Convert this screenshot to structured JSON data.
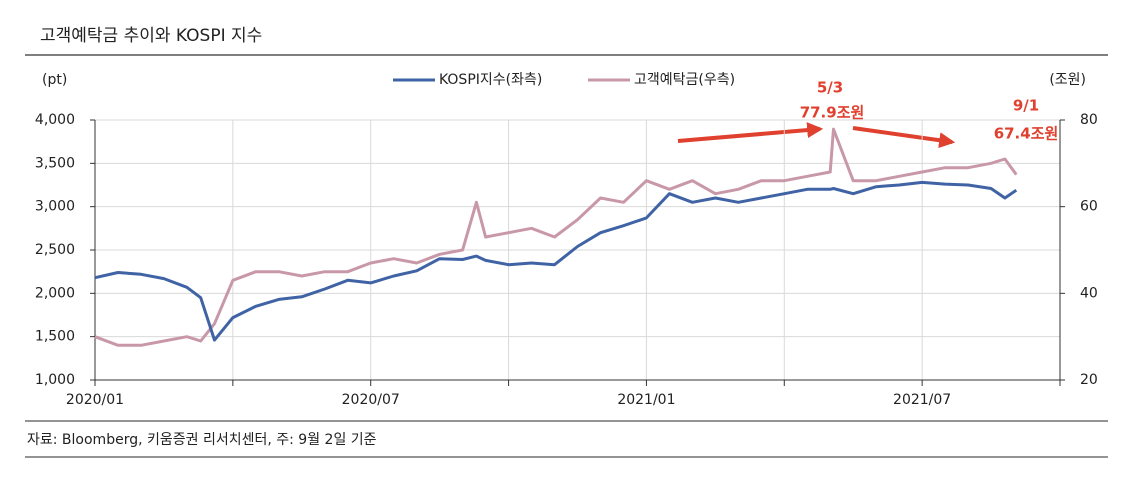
{
  "chart_data": {
    "type": "line",
    "title": "고객예탁금 추이와 KOSPI 지수",
    "y_unit": "(pt)",
    "y2_unit": "(조원)",
    "source": "자료: Bloomberg, 키움증권 리서치센터, 주: 9월 2일 기준",
    "x": [
      0,
      0.5,
      1,
      1.5,
      2,
      2.3,
      2.6,
      3,
      3.5,
      4,
      4.5,
      5,
      5.5,
      6,
      6.5,
      7,
      7.5,
      8,
      8.3,
      8.5,
      9,
      9.5,
      10,
      10.5,
      11,
      11.5,
      12,
      12.5,
      13,
      13.5,
      14,
      14.5,
      15,
      15.5,
      16,
      16.07,
      16.5,
      17,
      17.5,
      18,
      18.5,
      19,
      19.5,
      19.8,
      20.05
    ],
    "xlim": [
      0,
      21
    ],
    "xticks": [
      {
        "value": 0,
        "label": "2020/01"
      },
      {
        "value": 6,
        "label": "2020/07"
      },
      {
        "value": 12,
        "label": "2021/01"
      },
      {
        "value": 18,
        "label": "2021/07"
      }
    ],
    "xminorticks": [
      3,
      9,
      15,
      21
    ],
    "ylim": [
      1000,
      4000
    ],
    "yticks": [
      {
        "value": 1000,
        "label": "1,000"
      },
      {
        "value": 1500,
        "label": "1,500"
      },
      {
        "value": 2000,
        "label": "2,000"
      },
      {
        "value": 2500,
        "label": "2,500"
      },
      {
        "value": 3000,
        "label": "3,000"
      },
      {
        "value": 3500,
        "label": "3,500"
      },
      {
        "value": 4000,
        "label": "4,000"
      }
    ],
    "y2lim": [
      20,
      80
    ],
    "y2ticks": [
      20,
      40,
      60,
      80
    ],
    "grid": true,
    "series": [
      {
        "name": "KOSPI지수(좌측)",
        "color": "#3f63a4",
        "values": [
          2180,
          2240,
          2220,
          2170,
          2070,
          1950,
          1460,
          1720,
          1850,
          1930,
          1960,
          2050,
          2150,
          2120,
          2200,
          2260,
          2400,
          2390,
          2430,
          2380,
          2330,
          2350,
          2330,
          2540,
          2700,
          2780,
          2870,
          3150,
          3050,
          3100,
          3050,
          3100,
          3150,
          3200,
          3200,
          3210,
          3150,
          3230,
          3250,
          3280,
          3260,
          3250,
          3210,
          3100,
          3190
        ]
      },
      {
        "name": "고객예탁금(우측)",
        "color": "#c898a8",
        "axis": "y2",
        "values": [
          30,
          28,
          28,
          29,
          30,
          29,
          33,
          43,
          45,
          45,
          44,
          45,
          45,
          47,
          48,
          47,
          49,
          50,
          61,
          53,
          54,
          55,
          53,
          57,
          62,
          61,
          66,
          64,
          66,
          63,
          64,
          66,
          66,
          67,
          68,
          77.9,
          66,
          66,
          67,
          68,
          69,
          69,
          70,
          71,
          67.4
        ]
      }
    ],
    "annotations": [
      {
        "date": "5/3",
        "value_label": "77.9조원"
      },
      {
        "date": "9/1",
        "value_label": "67.4조원"
      }
    ]
  }
}
